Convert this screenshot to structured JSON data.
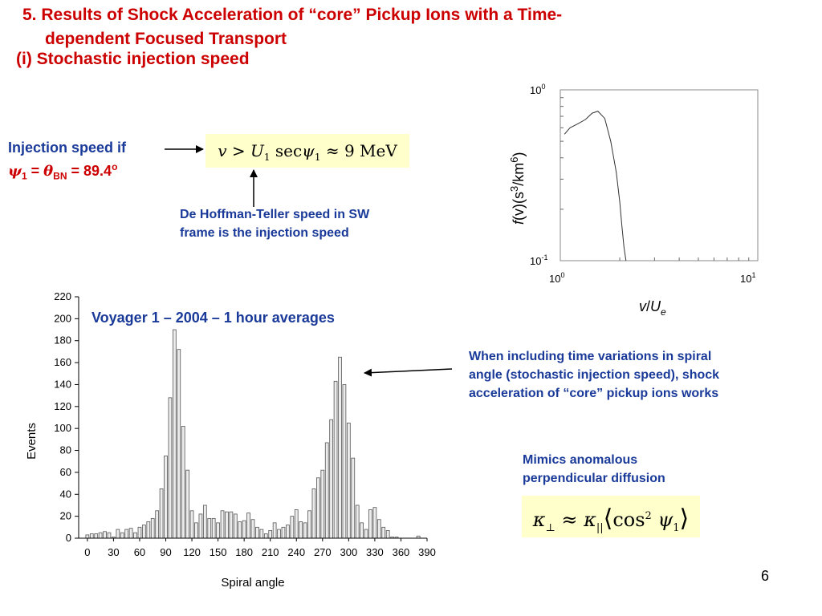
{
  "slide": {
    "title_line1": "5. Results of Shock Acceleration of “core” Pickup Ions with a Time-",
    "title_line2": "dependent Focused Transport",
    "subtitle": "(i) Stochastic injection speed",
    "page_number": "6"
  },
  "injection": {
    "line1": "Injection speed if",
    "psi_symbol": "ψ",
    "psi_sub": "1",
    "equals": " = ",
    "theta_symbol": "θ",
    "theta_sub": "BN",
    "value": " = 89.4",
    "degree": "o"
  },
  "equation1": {
    "v": "v",
    "gt": " > ",
    "U": "U",
    "U_sub": "1",
    "sec": " sec",
    "psi": "ψ",
    "psi_sub": "1",
    "approx": "  ≈ 9 MeV"
  },
  "notes": {
    "dht_line1": "De Hoffman-Teller speed in SW",
    "dht_line2": "frame is the injection speed",
    "when_line1": "When including time variations in spiral",
    "when_line2": "angle  (stochastic injection speed), shock",
    "when_line3": "acceleration of “core” pickup ions works",
    "mimic_line1": "Mimics anomalous",
    "mimic_line2": "perpendicular diffusion"
  },
  "equation2": {
    "kappa": "κ",
    "perp": "⊥",
    "approx": " ≈ ",
    "kappa2": "κ",
    "par": "||",
    "open": "⟨",
    "cos": "cos",
    "sq": "2",
    "psi": " ψ",
    "psi_sub": "1",
    "close": "⟩"
  },
  "colors": {
    "title_red": "#cc0000",
    "note_blue": "#1a3a9a",
    "equation_bg": "#ffffcc"
  },
  "chart_data": [
    {
      "type": "bar",
      "annotation": "Voyager 1 – 2004 – 1 hour averages",
      "xlabel": "Spiral angle",
      "ylabel": "Events",
      "ylim": [
        0,
        220
      ],
      "yticks": [
        0,
        20,
        40,
        60,
        80,
        100,
        120,
        140,
        160,
        180,
        200,
        220
      ],
      "xlim": [
        -10,
        390
      ],
      "xticks": [
        0,
        30,
        60,
        90,
        120,
        150,
        180,
        210,
        240,
        270,
        300,
        330,
        360,
        390
      ],
      "bar_width_deg": 5,
      "x": [
        0,
        5,
        10,
        15,
        20,
        25,
        30,
        35,
        40,
        45,
        50,
        55,
        60,
        65,
        70,
        75,
        80,
        85,
        90,
        95,
        100,
        105,
        110,
        115,
        120,
        125,
        130,
        135,
        140,
        145,
        150,
        155,
        160,
        165,
        170,
        175,
        180,
        185,
        190,
        195,
        200,
        205,
        210,
        215,
        220,
        225,
        230,
        235,
        240,
        245,
        250,
        255,
        260,
        265,
        270,
        275,
        280,
        285,
        290,
        295,
        300,
        305,
        310,
        315,
        320,
        325,
        330,
        335,
        340,
        345,
        350,
        355,
        360,
        365,
        370,
        375,
        380
      ],
      "values": [
        3,
        4,
        4,
        5,
        6,
        5,
        1,
        8,
        5,
        8,
        9,
        5,
        10,
        12,
        15,
        18,
        25,
        45,
        75,
        128,
        190,
        172,
        102,
        62,
        25,
        14,
        22,
        30,
        18,
        18,
        14,
        25,
        24,
        24,
        22,
        15,
        16,
        23,
        17,
        10,
        8,
        4,
        7,
        14,
        8,
        10,
        12,
        20,
        26,
        15,
        14,
        25,
        45,
        55,
        62,
        87,
        108,
        143,
        165,
        140,
        105,
        73,
        30,
        14,
        8,
        26,
        28,
        17,
        10,
        7,
        1,
        1,
        0,
        0,
        0,
        0,
        2
      ]
    },
    {
      "type": "line",
      "xscale": "log",
      "yscale": "log",
      "xlabel": "v/U_e",
      "ylabel": "f(v)(s3/km6)",
      "xlim": [
        1,
        10
      ],
      "ylim": [
        0.1,
        1
      ],
      "xticks": [
        "100",
        "101"
      ],
      "yticks": [
        "100",
        "10-1"
      ],
      "x": [
        1.05,
        1.12,
        1.22,
        1.34,
        1.45,
        1.55,
        1.68,
        1.8,
        1.92,
        2.0,
        2.05,
        2.1,
        2.15
      ],
      "values": [
        0.55,
        0.6,
        0.63,
        0.67,
        0.73,
        0.75,
        0.68,
        0.5,
        0.33,
        0.22,
        0.16,
        0.12,
        0.1
      ]
    }
  ]
}
